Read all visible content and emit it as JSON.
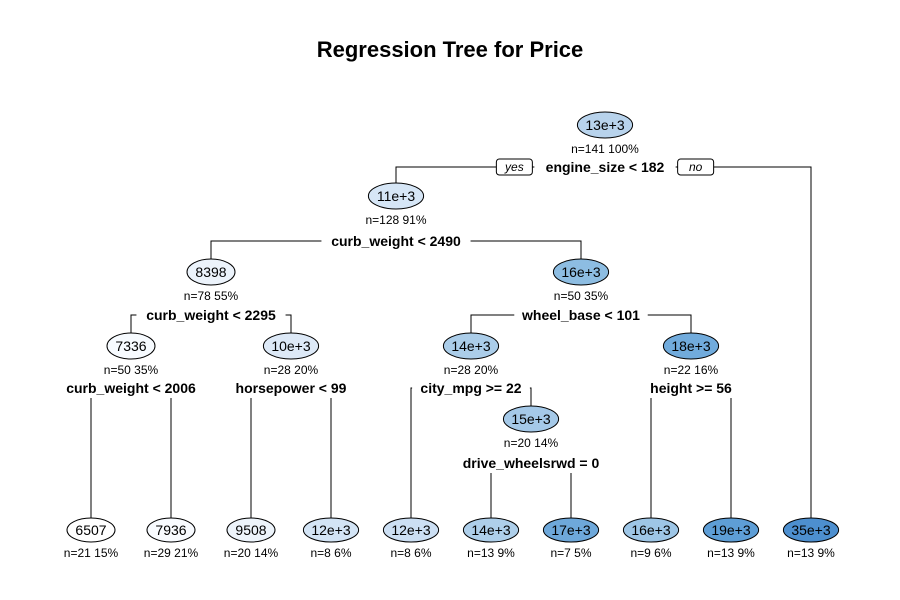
{
  "title": "Regression Tree for Price",
  "labels": {
    "yes": "yes",
    "no": "no"
  },
  "nodes": [
    {
      "id": "root",
      "value": "13e+3",
      "stats": "n=141  100%",
      "split": "engine_size < 182",
      "color": "#b8d3ec"
    },
    {
      "id": "n2",
      "value": "11e+3",
      "stats": "n=128  91%",
      "split": "curb_weight < 2490",
      "color": "#d6e6f6"
    },
    {
      "id": "n4",
      "value": "8398",
      "stats": "n=78  55%",
      "split": "curb_weight < 2295",
      "color": "#ecf3fb"
    },
    {
      "id": "n5",
      "value": "16e+3",
      "stats": "n=50  35%",
      "split": "wheel_base < 101",
      "color": "#8dbde2"
    },
    {
      "id": "n8",
      "value": "7336",
      "stats": "n=50  35%",
      "split": "curb_weight < 2006",
      "color": "#f7fbff"
    },
    {
      "id": "n9",
      "value": "10e+3",
      "stats": "n=28  20%",
      "split": "horsepower < 99",
      "color": "#dde9f7"
    },
    {
      "id": "n10",
      "value": "14e+3",
      "stats": "n=28  20%",
      "split": "city_mpg >= 22",
      "color": "#abcde9"
    },
    {
      "id": "n11",
      "value": "18e+3",
      "stats": "n=22  16%",
      "split": "height >= 56",
      "color": "#71abdc"
    },
    {
      "id": "n21",
      "value": "15e+3",
      "stats": "n=20  14%",
      "split": "drive_wheelsrwd = 0",
      "color": "#a5c9e8"
    },
    {
      "id": "l1",
      "value": "6507",
      "stats": "n=21  15%",
      "split": "",
      "color": "#ffffff"
    },
    {
      "id": "l2",
      "value": "7936",
      "stats": "n=29  21%",
      "split": "",
      "color": "#f8fbff"
    },
    {
      "id": "l3",
      "value": "9508",
      "stats": "n=20  14%",
      "split": "",
      "color": "#edf4fb"
    },
    {
      "id": "l4",
      "value": "12e+3",
      "stats": "n=8  6%",
      "split": "",
      "color": "#d3e4f5"
    },
    {
      "id": "l5",
      "value": "12e+3",
      "stats": "n=8  6%",
      "split": "",
      "color": "#ccdff3"
    },
    {
      "id": "l6",
      "value": "14e+3",
      "stats": "n=13  9%",
      "split": "",
      "color": "#aecfea"
    },
    {
      "id": "l7",
      "value": "17e+3",
      "stats": "n=7  5%",
      "split": "",
      "color": "#6ea8da"
    },
    {
      "id": "l8",
      "value": "16e+3",
      "stats": "n=9  6%",
      "split": "",
      "color": "#9ec6e6"
    },
    {
      "id": "l9",
      "value": "19e+3",
      "stats": "n=13  9%",
      "split": "",
      "color": "#5e9ed6"
    },
    {
      "id": "l10",
      "value": "35e+3",
      "stats": "n=13  9%",
      "split": "",
      "color": "#4d8fcf"
    }
  ],
  "edges": [
    [
      "root",
      "n2"
    ],
    [
      "root",
      "l10"
    ],
    [
      "n2",
      "n4"
    ],
    [
      "n2",
      "n5"
    ],
    [
      "n4",
      "n8"
    ],
    [
      "n4",
      "n9"
    ],
    [
      "n5",
      "n10"
    ],
    [
      "n5",
      "n11"
    ],
    [
      "n8",
      "l1"
    ],
    [
      "n8",
      "l2"
    ],
    [
      "n9",
      "l3"
    ],
    [
      "n9",
      "l4"
    ],
    [
      "n10",
      "l5"
    ],
    [
      "n10",
      "n21"
    ],
    [
      "n21",
      "l6"
    ],
    [
      "n21",
      "l7"
    ],
    [
      "n11",
      "l8"
    ],
    [
      "n11",
      "l9"
    ]
  ]
}
